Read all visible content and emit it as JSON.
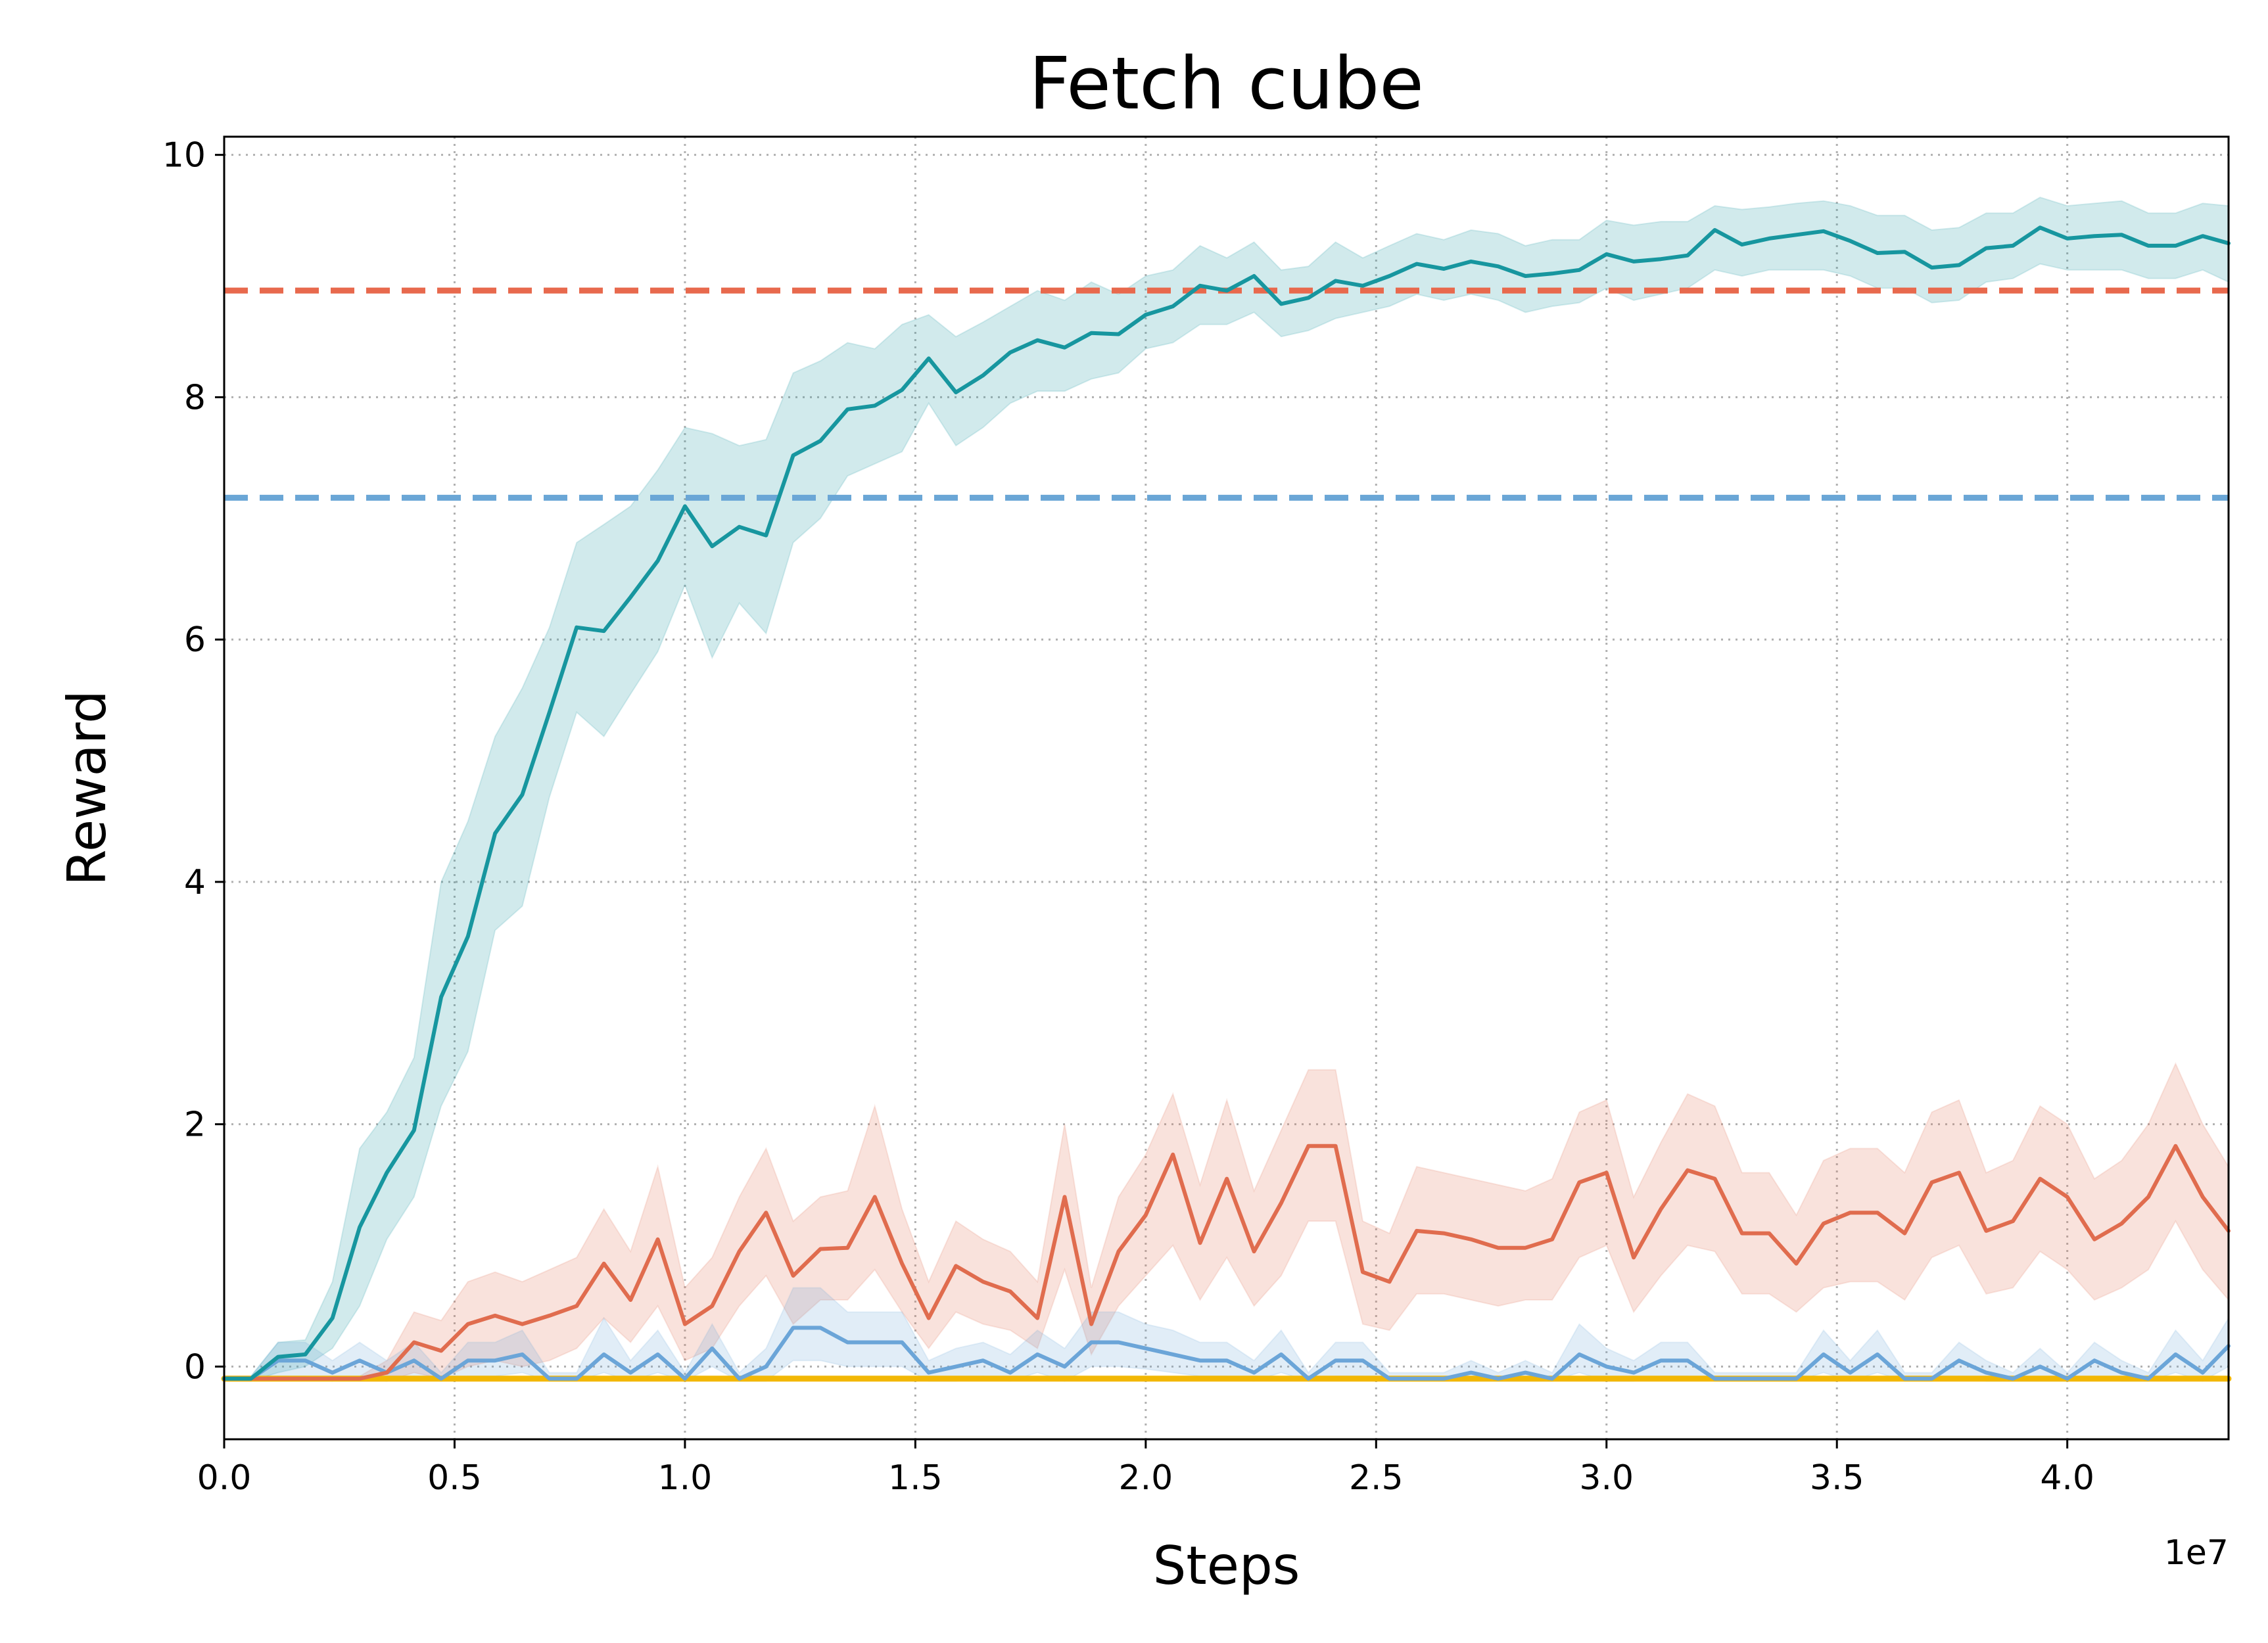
{
  "chart_data": {
    "type": "line",
    "title": "Fetch cube",
    "xlabel": "Steps",
    "ylabel": "Reward",
    "x_offset_label": "1e7",
    "xlim": [
      0,
      4.35
    ],
    "ylim": [
      -0.6,
      10.15
    ],
    "xticks": [
      0.0,
      0.5,
      1.0,
      1.5,
      2.0,
      2.5,
      3.0,
      3.5,
      4.0
    ],
    "xtick_labels": [
      "0.0",
      "0.5",
      "1.0",
      "1.5",
      "2.0",
      "2.5",
      "3.0",
      "3.5",
      "4.0"
    ],
    "yticks": [
      0,
      2,
      4,
      6,
      8,
      10
    ],
    "ytick_labels": [
      "0",
      "2",
      "4",
      "6",
      "8",
      "10"
    ],
    "grid": true,
    "legend": "none",
    "x": [
      0,
      0.058,
      0.117,
      0.176,
      0.235,
      0.294,
      0.353,
      0.412,
      0.471,
      0.529,
      0.588,
      0.647,
      0.706,
      0.765,
      0.824,
      0.882,
      0.941,
      1.0,
      1.059,
      1.118,
      1.176,
      1.235,
      1.294,
      1.353,
      1.412,
      1.471,
      1.529,
      1.588,
      1.647,
      1.706,
      1.765,
      1.824,
      1.882,
      1.941,
      2.0,
      2.059,
      2.118,
      2.176,
      2.235,
      2.294,
      2.353,
      2.412,
      2.471,
      2.529,
      2.588,
      2.647,
      2.706,
      2.765,
      2.824,
      2.882,
      2.941,
      3.0,
      3.059,
      3.118,
      3.176,
      3.235,
      3.294,
      3.353,
      3.412,
      3.471,
      3.529,
      3.588,
      3.647,
      3.706,
      3.765,
      3.824,
      3.882,
      3.941,
      4.0,
      4.059,
      4.118,
      4.176,
      4.235,
      4.294,
      4.35
    ],
    "series": [
      {
        "color": "#17969f",
        "mean": [
          -0.1,
          -0.1,
          0.08,
          0.1,
          0.4,
          1.15,
          1.6,
          1.95,
          3.05,
          3.55,
          4.4,
          4.72,
          5.4,
          6.1,
          6.07,
          6.35,
          6.65,
          7.1,
          6.77,
          6.93,
          6.86,
          7.52,
          7.64,
          7.9,
          7.93,
          8.06,
          8.32,
          8.04,
          8.18,
          8.37,
          8.47,
          8.41,
          8.53,
          8.52,
          8.68,
          8.75,
          8.92,
          8.88,
          9.0,
          8.77,
          8.82,
          8.96,
          8.92,
          9.0,
          9.1,
          9.06,
          9.12,
          9.08,
          9.0,
          9.02,
          9.05,
          9.18,
          9.12,
          9.14,
          9.17,
          9.38,
          9.26,
          9.31,
          9.34,
          9.37,
          9.29,
          9.19,
          9.2,
          9.07,
          9.09,
          9.23,
          9.25,
          9.4,
          9.31,
          9.33,
          9.34,
          9.25,
          9.25,
          9.33,
          9.27
        ],
        "lower": [
          -0.12,
          -0.12,
          -0.05,
          0.0,
          0.15,
          0.5,
          1.05,
          1.4,
          2.15,
          2.6,
          3.6,
          3.8,
          4.7,
          5.4,
          5.2,
          5.55,
          5.9,
          6.45,
          5.85,
          6.3,
          6.05,
          6.8,
          7.0,
          7.35,
          7.45,
          7.55,
          7.95,
          7.6,
          7.75,
          7.95,
          8.05,
          8.05,
          8.15,
          8.2,
          8.4,
          8.45,
          8.6,
          8.6,
          8.7,
          8.5,
          8.55,
          8.65,
          8.7,
          8.75,
          8.85,
          8.8,
          8.85,
          8.8,
          8.7,
          8.75,
          8.78,
          8.9,
          8.8,
          8.85,
          8.9,
          9.05,
          9.0,
          9.05,
          9.05,
          9.05,
          9.0,
          8.9,
          8.9,
          8.78,
          8.8,
          8.95,
          8.98,
          9.1,
          9.05,
          9.05,
          9.05,
          8.98,
          8.98,
          9.05,
          8.95
        ],
        "upper": [
          -0.08,
          -0.08,
          0.2,
          0.22,
          0.7,
          1.8,
          2.1,
          2.55,
          4.0,
          4.5,
          5.2,
          5.6,
          6.1,
          6.8,
          6.95,
          7.1,
          7.4,
          7.75,
          7.7,
          7.6,
          7.65,
          8.2,
          8.3,
          8.45,
          8.4,
          8.6,
          8.68,
          8.5,
          8.62,
          8.75,
          8.88,
          8.8,
          8.95,
          8.85,
          9.0,
          9.05,
          9.25,
          9.15,
          9.28,
          9.05,
          9.08,
          9.28,
          9.15,
          9.25,
          9.35,
          9.3,
          9.38,
          9.35,
          9.25,
          9.3,
          9.3,
          9.46,
          9.42,
          9.45,
          9.45,
          9.58,
          9.55,
          9.57,
          9.6,
          9.62,
          9.58,
          9.5,
          9.5,
          9.38,
          9.4,
          9.52,
          9.52,
          9.65,
          9.58,
          9.6,
          9.62,
          9.52,
          9.52,
          9.6,
          9.58
        ]
      },
      {
        "color": "#e06c4e",
        "mean": [
          -0.1,
          -0.1,
          -0.1,
          -0.1,
          -0.1,
          -0.1,
          -0.05,
          0.2,
          0.13,
          0.35,
          0.42,
          0.35,
          0.42,
          0.5,
          0.85,
          0.55,
          1.05,
          0.35,
          0.5,
          0.95,
          1.27,
          0.75,
          0.97,
          0.98,
          1.4,
          0.85,
          0.4,
          0.83,
          0.7,
          0.62,
          0.4,
          1.4,
          0.35,
          0.95,
          1.25,
          1.75,
          1.02,
          1.55,
          0.95,
          1.35,
          1.82,
          1.82,
          0.78,
          0.7,
          1.12,
          1.1,
          1.05,
          0.98,
          0.98,
          1.05,
          1.52,
          1.6,
          0.9,
          1.3,
          1.62,
          1.55,
          1.1,
          1.1,
          0.85,
          1.18,
          1.27,
          1.27,
          1.1,
          1.52,
          1.6,
          1.12,
          1.2,
          1.55,
          1.4,
          1.05,
          1.18,
          1.4,
          1.82,
          1.4,
          1.12
        ],
        "lower": [
          -0.12,
          -0.12,
          -0.12,
          -0.12,
          -0.12,
          -0.12,
          -0.12,
          -0.05,
          -0.1,
          0.0,
          0.05,
          0.0,
          0.05,
          0.15,
          0.4,
          0.2,
          0.5,
          0.05,
          0.15,
          0.5,
          0.75,
          0.35,
          0.55,
          0.55,
          0.8,
          0.45,
          0.15,
          0.45,
          0.35,
          0.3,
          0.15,
          0.8,
          0.1,
          0.5,
          0.75,
          1.0,
          0.55,
          0.9,
          0.5,
          0.75,
          1.2,
          1.2,
          0.35,
          0.3,
          0.6,
          0.6,
          0.55,
          0.5,
          0.55,
          0.55,
          0.9,
          1.0,
          0.45,
          0.75,
          1.0,
          0.95,
          0.6,
          0.6,
          0.45,
          0.65,
          0.7,
          0.7,
          0.55,
          0.9,
          1.0,
          0.6,
          0.65,
          0.95,
          0.8,
          0.55,
          0.65,
          0.8,
          1.2,
          0.8,
          0.55
        ],
        "upper": [
          -0.08,
          -0.08,
          -0.08,
          -0.08,
          -0.08,
          -0.08,
          0.05,
          0.45,
          0.38,
          0.7,
          0.78,
          0.7,
          0.8,
          0.9,
          1.3,
          0.95,
          1.65,
          0.65,
          0.9,
          1.4,
          1.8,
          1.2,
          1.4,
          1.45,
          2.15,
          1.3,
          0.7,
          1.2,
          1.05,
          0.95,
          0.7,
          2.0,
          0.65,
          1.4,
          1.75,
          2.25,
          1.5,
          2.2,
          1.45,
          1.95,
          2.45,
          2.45,
          1.2,
          1.1,
          1.65,
          1.6,
          1.55,
          1.5,
          1.45,
          1.55,
          2.1,
          2.2,
          1.4,
          1.85,
          2.25,
          2.15,
          1.6,
          1.6,
          1.25,
          1.7,
          1.8,
          1.8,
          1.6,
          2.1,
          2.2,
          1.6,
          1.7,
          2.15,
          2.0,
          1.55,
          1.7,
          2.0,
          2.5,
          2.0,
          1.65
        ]
      },
      {
        "color": "#6ba5d8",
        "mean": [
          -0.1,
          -0.1,
          0.05,
          0.05,
          -0.05,
          0.05,
          -0.05,
          0.05,
          -0.1,
          0.05,
          0.05,
          0.1,
          -0.1,
          -0.1,
          0.1,
          -0.05,
          0.1,
          -0.1,
          0.15,
          -0.1,
          0.0,
          0.32,
          0.32,
          0.2,
          0.2,
          0.2,
          -0.05,
          0.0,
          0.05,
          -0.05,
          0.1,
          0.0,
          0.2,
          0.2,
          0.15,
          0.1,
          0.05,
          0.05,
          -0.05,
          0.1,
          -0.1,
          0.05,
          0.05,
          -0.1,
          -0.1,
          -0.1,
          -0.05,
          -0.1,
          -0.05,
          -0.1,
          0.1,
          0.0,
          -0.05,
          0.05,
          0.05,
          -0.1,
          -0.1,
          -0.1,
          -0.1,
          0.1,
          -0.05,
          0.1,
          -0.1,
          -0.1,
          0.05,
          -0.05,
          -0.1,
          0.0,
          -0.1,
          0.05,
          -0.05,
          -0.1,
          0.1,
          -0.05,
          0.17
        ],
        "lower": [
          -0.12,
          -0.12,
          -0.08,
          -0.08,
          -0.12,
          -0.08,
          -0.12,
          -0.08,
          -0.12,
          -0.08,
          -0.08,
          -0.05,
          -0.12,
          -0.12,
          -0.05,
          -0.12,
          -0.05,
          -0.12,
          0.0,
          -0.12,
          -0.12,
          0.05,
          0.05,
          0.0,
          0.0,
          0.0,
          -0.12,
          -0.12,
          -0.08,
          -0.12,
          -0.05,
          -0.12,
          0.0,
          0.0,
          -0.02,
          -0.05,
          -0.08,
          -0.08,
          -0.12,
          -0.05,
          -0.12,
          -0.08,
          -0.08,
          -0.12,
          -0.12,
          -0.12,
          -0.12,
          -0.12,
          -0.12,
          -0.12,
          -0.05,
          -0.12,
          -0.12,
          -0.08,
          -0.08,
          -0.12,
          -0.12,
          -0.12,
          -0.12,
          -0.05,
          -0.12,
          -0.05,
          -0.12,
          -0.12,
          -0.08,
          -0.12,
          -0.12,
          -0.12,
          -0.12,
          -0.08,
          -0.12,
          -0.12,
          -0.05,
          -0.12,
          0.0
        ],
        "upper": [
          -0.08,
          -0.08,
          0.2,
          0.2,
          0.05,
          0.2,
          0.05,
          0.2,
          -0.05,
          0.2,
          0.2,
          0.3,
          -0.05,
          -0.05,
          0.4,
          0.05,
          0.3,
          -0.05,
          0.35,
          -0.05,
          0.15,
          0.65,
          0.65,
          0.45,
          0.45,
          0.45,
          0.05,
          0.15,
          0.2,
          0.1,
          0.3,
          0.15,
          0.45,
          0.45,
          0.35,
          0.3,
          0.2,
          0.2,
          0.05,
          0.3,
          -0.05,
          0.2,
          0.2,
          -0.05,
          -0.05,
          -0.05,
          0.05,
          -0.05,
          0.05,
          -0.05,
          0.35,
          0.15,
          0.05,
          0.2,
          0.2,
          -0.05,
          -0.05,
          -0.05,
          -0.05,
          0.3,
          0.05,
          0.3,
          -0.05,
          -0.05,
          0.2,
          0.05,
          -0.05,
          0.15,
          -0.05,
          0.2,
          0.05,
          -0.05,
          0.3,
          0.05,
          0.4
        ]
      },
      {
        "color": "#f2b705",
        "mean": [
          -0.1,
          -0.1,
          -0.1,
          -0.1,
          -0.1,
          -0.1,
          -0.1,
          -0.1,
          -0.1,
          -0.1,
          -0.1,
          -0.1,
          -0.1,
          -0.1,
          -0.1,
          -0.1,
          -0.1,
          -0.1,
          -0.1,
          -0.1,
          -0.1,
          -0.1,
          -0.1,
          -0.1,
          -0.1,
          -0.1,
          -0.1,
          -0.1,
          -0.1,
          -0.1,
          -0.1,
          -0.1,
          -0.1,
          -0.1,
          -0.1,
          -0.1,
          -0.1,
          -0.1,
          -0.1,
          -0.1,
          -0.1,
          -0.1,
          -0.1,
          -0.1,
          -0.1,
          -0.1,
          -0.1,
          -0.1,
          -0.1,
          -0.1,
          -0.1,
          -0.1,
          -0.1,
          -0.1,
          -0.1,
          -0.1,
          -0.1,
          -0.1,
          -0.1,
          -0.1,
          -0.1,
          -0.1,
          -0.1,
          -0.1,
          -0.1,
          -0.1,
          -0.1,
          -0.1,
          -0.1,
          -0.1,
          -0.1,
          -0.1,
          -0.1,
          -0.1,
          -0.1
        ]
      }
    ],
    "reference_lines": [
      {
        "y": 8.88,
        "color": "#e8694d",
        "style": "dashed"
      },
      {
        "y": 7.17,
        "color": "#6aa6d6",
        "style": "dashed"
      }
    ]
  }
}
